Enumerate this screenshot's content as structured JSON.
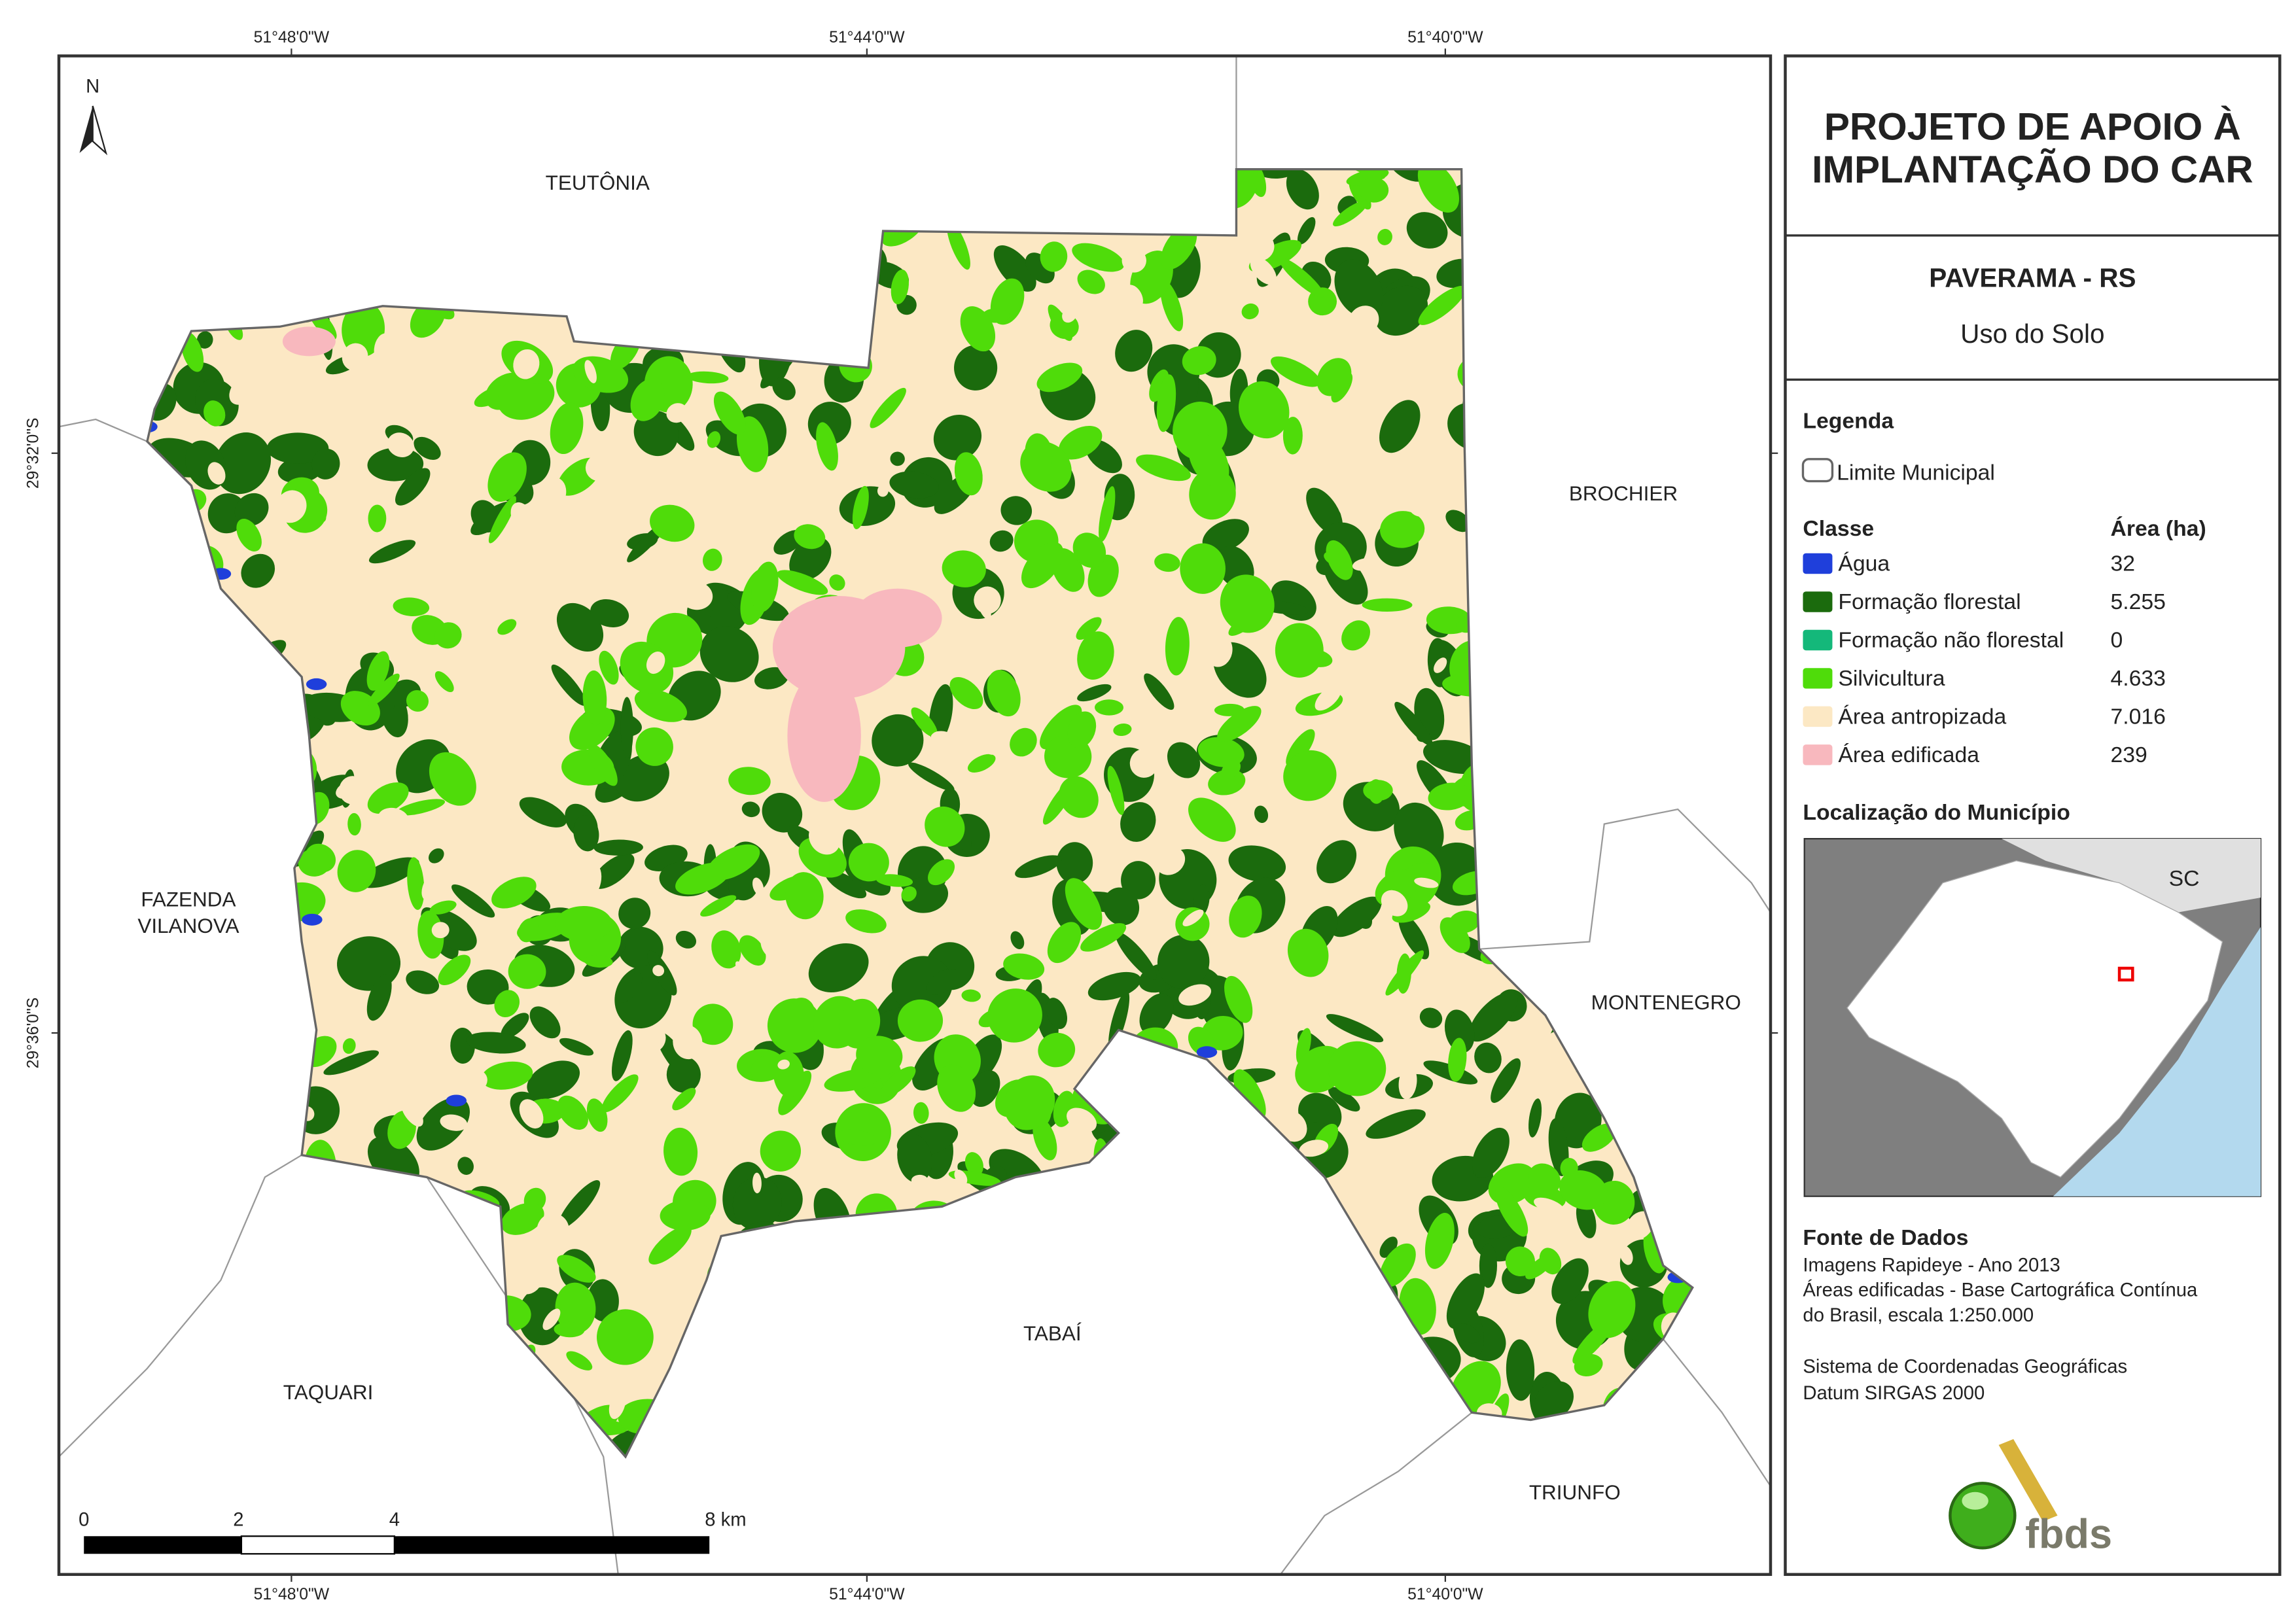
{
  "header": {
    "title_lines": [
      "PROJETO DE APOIO À",
      "IMPLANTAÇÃO DO CAR"
    ],
    "municipality": "PAVERAMA - RS",
    "theme": "Uso do Solo"
  },
  "legend": {
    "title": "Legenda",
    "boundary": "Limite Municipal",
    "class_header": "Classe",
    "area_header": "Área (ha)",
    "classes": [
      {
        "name": "Água",
        "area": "32",
        "color": "#1f3fdb"
      },
      {
        "name": "Formação florestal",
        "area": "5.255",
        "color": "#1b6b0d"
      },
      {
        "name": "Formação não florestal",
        "area": "0",
        "color": "#14b87a"
      },
      {
        "name": "Silvicultura",
        "area": "4.633",
        "color": "#4fdc0a"
      },
      {
        "name": "Área antropizada",
        "area": "7.016",
        "color": "#fce8c4"
      },
      {
        "name": "Área edificada",
        "area": "239",
        "color": "#f8b8be"
      }
    ]
  },
  "location": {
    "title": "Localização do Município",
    "state_label": "SC"
  },
  "sources": {
    "title": "Fonte de Dados",
    "lines": [
      "Imagens Rapideye - Ano 2013",
      "Áreas edificadas - Base Cartográfica Contínua",
      "do Brasil, escala 1:250.000",
      "Sistema de Coordenadas Geográficas",
      "Datum SIRGAS 2000"
    ]
  },
  "map": {
    "north": "N",
    "places": [
      {
        "lines": [
          "TEUTÔNIA"
        ]
      },
      {
        "lines": [
          "BROCHIER"
        ]
      },
      {
        "lines": [
          "FAZENDA",
          "VILANOVA"
        ]
      },
      {
        "lines": [
          "MONTENEGRO"
        ]
      },
      {
        "lines": [
          "TABAÍ"
        ]
      },
      {
        "lines": [
          "TAQUARI"
        ]
      },
      {
        "lines": [
          "TRIUNFO"
        ]
      }
    ],
    "lon_labels": [
      "51°48'0\"W",
      "51°44'0\"W",
      "51°40'0\"W"
    ],
    "lat_labels": [
      "29°32'0\"S",
      "29°36'0\"S"
    ],
    "scale_labels": [
      "0",
      "2",
      "4",
      "8 km"
    ]
  },
  "logo": "fbds"
}
